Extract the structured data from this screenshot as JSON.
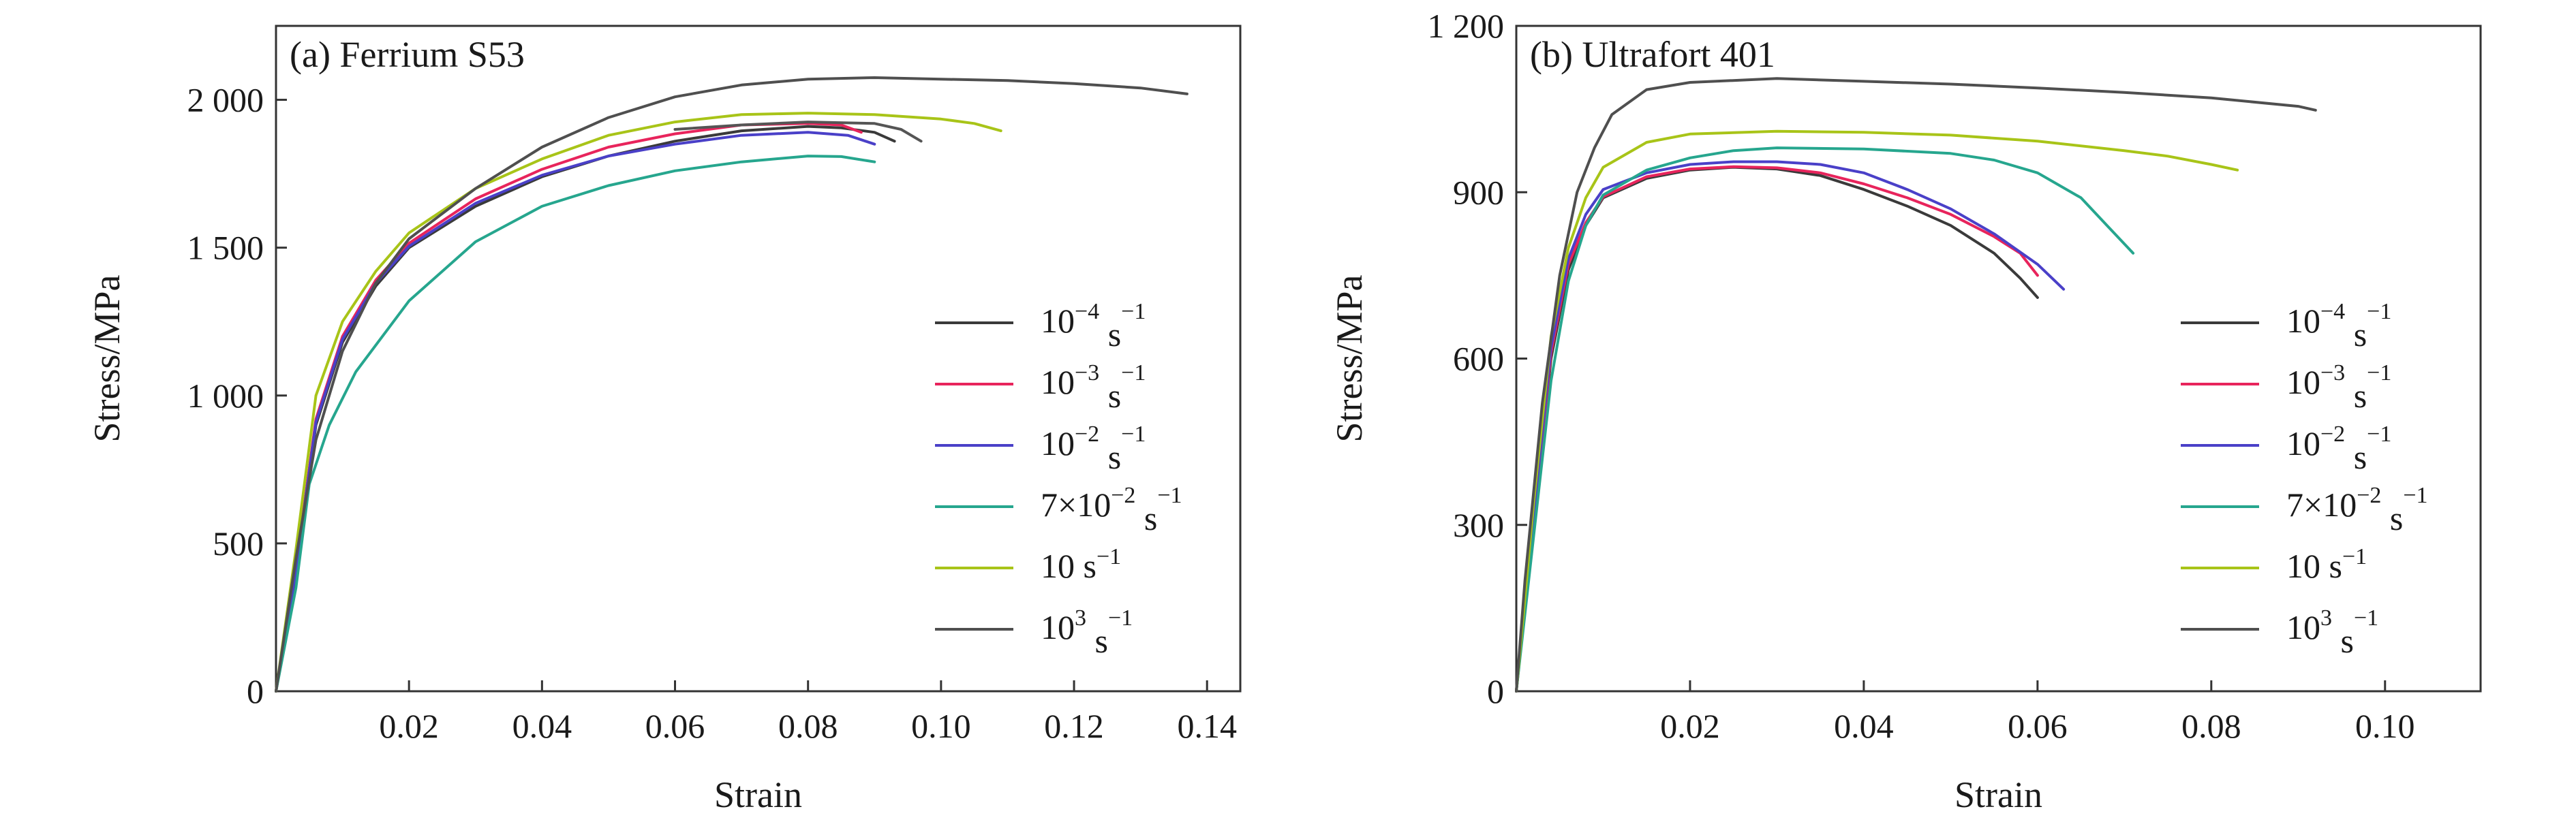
{
  "chart_data": [
    {
      "type": "line",
      "panel_title": "(a) Ferrium S53",
      "xlabel": "Strain",
      "ylabel": "Stress/MPa",
      "xlim": [
        0,
        0.145
      ],
      "ylim": [
        0,
        2250
      ],
      "xticks": [
        0.02,
        0.04,
        0.06,
        0.08,
        0.1,
        0.12,
        0.14
      ],
      "xtick_labels": [
        "0.02",
        "0.04",
        "0.06",
        "0.08",
        "0.10",
        "0.12",
        "0.14"
      ],
      "yticks": [
        0,
        500,
        1000,
        1500,
        2000
      ],
      "ytick_labels": [
        "0",
        "500",
        "1 000",
        "1 500",
        "2 000"
      ],
      "legend_position": "lower-right",
      "series": [
        {
          "base": "10",
          "exp": "−4",
          "unit": " s",
          "unit_exp": "−1",
          "color": "#3a3a3a",
          "points": [
            [
              0,
              0
            ],
            [
              0.003,
              400
            ],
            [
              0.006,
              900
            ],
            [
              0.01,
              1180
            ],
            [
              0.015,
              1370
            ],
            [
              0.02,
              1500
            ],
            [
              0.03,
              1640
            ],
            [
              0.04,
              1740
            ],
            [
              0.05,
              1810
            ],
            [
              0.06,
              1860
            ],
            [
              0.07,
              1895
            ],
            [
              0.08,
              1910
            ],
            [
              0.085,
              1905
            ],
            [
              0.09,
              1890
            ],
            [
              0.093,
              1860
            ]
          ]
        },
        {
          "base": "10",
          "exp": "−3",
          "unit": " s",
          "unit_exp": "−1",
          "color": "#e8245c",
          "points": [
            [
              0,
              0
            ],
            [
              0.003,
              420
            ],
            [
              0.006,
              920
            ],
            [
              0.01,
              1200
            ],
            [
              0.015,
              1390
            ],
            [
              0.02,
              1515
            ],
            [
              0.03,
              1665
            ],
            [
              0.04,
              1765
            ],
            [
              0.05,
              1840
            ],
            [
              0.06,
              1885
            ],
            [
              0.07,
              1915
            ],
            [
              0.08,
              1920
            ],
            [
              0.085,
              1915
            ],
            [
              0.088,
              1890
            ]
          ]
        },
        {
          "base": "10",
          "exp": "−2",
          "unit": " s",
          "unit_exp": "−1",
          "color": "#4a40c8",
          "points": [
            [
              0,
              0
            ],
            [
              0.003,
              410
            ],
            [
              0.006,
              910
            ],
            [
              0.01,
              1190
            ],
            [
              0.015,
              1380
            ],
            [
              0.02,
              1505
            ],
            [
              0.03,
              1650
            ],
            [
              0.04,
              1745
            ],
            [
              0.05,
              1810
            ],
            [
              0.06,
              1850
            ],
            [
              0.07,
              1880
            ],
            [
              0.08,
              1890
            ],
            [
              0.086,
              1880
            ],
            [
              0.09,
              1850
            ]
          ]
        },
        {
          "base": "7×10",
          "exp": "−2",
          "unit": " s",
          "unit_exp": "−1",
          "color": "#26a68e",
          "points": [
            [
              0,
              0
            ],
            [
              0.003,
              350
            ],
            [
              0.005,
              700
            ],
            [
              0.008,
              900
            ],
            [
              0.012,
              1080
            ],
            [
              0.02,
              1320
            ],
            [
              0.03,
              1520
            ],
            [
              0.04,
              1640
            ],
            [
              0.05,
              1710
            ],
            [
              0.06,
              1760
            ],
            [
              0.07,
              1790
            ],
            [
              0.08,
              1810
            ],
            [
              0.085,
              1808
            ],
            [
              0.09,
              1790
            ]
          ]
        },
        {
          "base": "10 s",
          "exp": "−1",
          "unit": "",
          "unit_exp": "",
          "color": "#a8c418",
          "points": [
            [
              0,
              0
            ],
            [
              0.003,
              480
            ],
            [
              0.006,
              1000
            ],
            [
              0.01,
              1250
            ],
            [
              0.015,
              1420
            ],
            [
              0.02,
              1550
            ],
            [
              0.03,
              1700
            ],
            [
              0.04,
              1800
            ],
            [
              0.05,
              1880
            ],
            [
              0.06,
              1925
            ],
            [
              0.07,
              1950
            ],
            [
              0.08,
              1955
            ],
            [
              0.09,
              1950
            ],
            [
              0.1,
              1935
            ],
            [
              0.105,
              1920
            ],
            [
              0.109,
              1895
            ]
          ]
        },
        {
          "base": "10",
          "exp": "3",
          "unit": " s",
          "unit_exp": "−1",
          "color": "#4f4f4f",
          "points": [
            [
              0,
              0
            ],
            [
              0.003,
              450
            ],
            [
              0.006,
              850
            ],
            [
              0.01,
              1150
            ],
            [
              0.015,
              1380
            ],
            [
              0.02,
              1530
            ],
            [
              0.03,
              1700
            ],
            [
              0.04,
              1840
            ],
            [
              0.05,
              1940
            ],
            [
              0.06,
              2010
            ],
            [
              0.07,
              2050
            ],
            [
              0.08,
              2070
            ],
            [
              0.09,
              2075
            ],
            [
              0.1,
              2070
            ],
            [
              0.11,
              2065
            ],
            [
              0.12,
              2055
            ],
            [
              0.13,
              2040
            ],
            [
              0.137,
              2020
            ]
          ]
        },
        {
          "base": "",
          "exp": "",
          "unit": "",
          "unit_exp": "",
          "color": "#555555",
          "points": [
            [
              0.06,
              1900
            ],
            [
              0.07,
              1915
            ],
            [
              0.08,
              1925
            ],
            [
              0.09,
              1920
            ],
            [
              0.094,
              1900
            ],
            [
              0.097,
              1860
            ]
          ]
        }
      ]
    },
    {
      "type": "line",
      "panel_title": "(b) Ultrafort 401",
      "xlabel": "Strain",
      "ylabel": "Stress/MPa",
      "xlim": [
        0,
        0.111
      ],
      "ylim": [
        0,
        1200
      ],
      "xticks": [
        0.02,
        0.04,
        0.06,
        0.08,
        0.1
      ],
      "xtick_labels": [
        "0.02",
        "0.04",
        "0.06",
        "0.08",
        "0.10"
      ],
      "yticks": [
        0,
        300,
        600,
        900,
        1200
      ],
      "ytick_labels": [
        "0",
        "300",
        "600",
        "900",
        "1 200"
      ],
      "legend_position": "lower-right",
      "series": [
        {
          "base": "10",
          "exp": "−4",
          "unit": " s",
          "unit_exp": "−1",
          "color": "#3a3a3a",
          "points": [
            [
              0,
              0
            ],
            [
              0.002,
              300
            ],
            [
              0.004,
              600
            ],
            [
              0.006,
              760
            ],
            [
              0.008,
              840
            ],
            [
              0.01,
              890
            ],
            [
              0.015,
              925
            ],
            [
              0.02,
              940
            ],
            [
              0.025,
              945
            ],
            [
              0.03,
              942
            ],
            [
              0.035,
              930
            ],
            [
              0.04,
              905
            ],
            [
              0.045,
              875
            ],
            [
              0.05,
              840
            ],
            [
              0.055,
              790
            ],
            [
              0.058,
              745
            ],
            [
              0.06,
              710
            ]
          ]
        },
        {
          "base": "10",
          "exp": "−3",
          "unit": " s",
          "unit_exp": "−1",
          "color": "#e8245c",
          "points": [
            [
              0,
              0
            ],
            [
              0.002,
              310
            ],
            [
              0.004,
              610
            ],
            [
              0.006,
              770
            ],
            [
              0.008,
              845
            ],
            [
              0.01,
              892
            ],
            [
              0.015,
              928
            ],
            [
              0.02,
              942
            ],
            [
              0.025,
              946
            ],
            [
              0.03,
              944
            ],
            [
              0.035,
              935
            ],
            [
              0.04,
              915
            ],
            [
              0.045,
              890
            ],
            [
              0.05,
              860
            ],
            [
              0.055,
              820
            ],
            [
              0.058,
              790
            ],
            [
              0.06,
              750
            ]
          ]
        },
        {
          "base": "10",
          "exp": "−2",
          "unit": " s",
          "unit_exp": "−1",
          "color": "#4a40c8",
          "points": [
            [
              0,
              0
            ],
            [
              0.002,
              320
            ],
            [
              0.004,
              620
            ],
            [
              0.006,
              780
            ],
            [
              0.008,
              860
            ],
            [
              0.01,
              905
            ],
            [
              0.015,
              935
            ],
            [
              0.02,
              950
            ],
            [
              0.025,
              955
            ],
            [
              0.03,
              955
            ],
            [
              0.035,
              950
            ],
            [
              0.04,
              935
            ],
            [
              0.045,
              905
            ],
            [
              0.05,
              870
            ],
            [
              0.055,
              825
            ],
            [
              0.06,
              770
            ],
            [
              0.063,
              725
            ]
          ]
        },
        {
          "base": "7×10",
          "exp": "−2",
          "unit": " s",
          "unit_exp": "−1",
          "color": "#26a68e",
          "points": [
            [
              0,
              0
            ],
            [
              0.002,
              280
            ],
            [
              0.004,
              560
            ],
            [
              0.006,
              740
            ],
            [
              0.008,
              840
            ],
            [
              0.01,
              895
            ],
            [
              0.015,
              940
            ],
            [
              0.02,
              962
            ],
            [
              0.025,
              975
            ],
            [
              0.03,
              980
            ],
            [
              0.04,
              978
            ],
            [
              0.05,
              970
            ],
            [
              0.055,
              958
            ],
            [
              0.06,
              935
            ],
            [
              0.065,
              890
            ],
            [
              0.068,
              840
            ],
            [
              0.071,
              790
            ]
          ]
        },
        {
          "base": "10 s",
          "exp": "−1",
          "unit": "",
          "unit_exp": "",
          "color": "#a8c418",
          "points": [
            [
              0,
              0
            ],
            [
              0.002,
              340
            ],
            [
              0.004,
              640
            ],
            [
              0.006,
              800
            ],
            [
              0.008,
              890
            ],
            [
              0.01,
              945
            ],
            [
              0.015,
              990
            ],
            [
              0.02,
              1005
            ],
            [
              0.03,
              1010
            ],
            [
              0.04,
              1008
            ],
            [
              0.05,
              1003
            ],
            [
              0.06,
              992
            ],
            [
              0.07,
              975
            ],
            [
              0.075,
              965
            ],
            [
              0.08,
              950
            ],
            [
              0.083,
              940
            ]
          ]
        },
        {
          "base": "10",
          "exp": "3",
          "unit": " s",
          "unit_exp": "−1",
          "color": "#4f4f4f",
          "points": [
            [
              0,
              0
            ],
            [
              0.001,
              200
            ],
            [
              0.003,
              520
            ],
            [
              0.005,
              750
            ],
            [
              0.007,
              900
            ],
            [
              0.009,
              980
            ],
            [
              0.011,
              1040
            ],
            [
              0.015,
              1085
            ],
            [
              0.02,
              1098
            ],
            [
              0.03,
              1105
            ],
            [
              0.04,
              1100
            ],
            [
              0.05,
              1095
            ],
            [
              0.06,
              1088
            ],
            [
              0.07,
              1080
            ],
            [
              0.08,
              1070
            ],
            [
              0.09,
              1055
            ],
            [
              0.092,
              1048
            ]
          ]
        }
      ]
    }
  ]
}
